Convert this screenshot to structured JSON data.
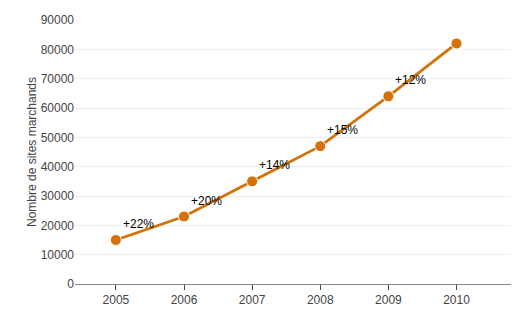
{
  "chart_data": {
    "type": "line",
    "x": [
      2005,
      2006,
      2007,
      2008,
      2009,
      2010
    ],
    "values": [
      15000,
      23000,
      35000,
      47000,
      64000,
      82000
    ],
    "color": "#D4720A",
    "marker": "circle",
    "ylabel": "Nombre de sites marchands",
    "annotations": [
      {
        "x": 2005,
        "y": 15000,
        "text": "+22%"
      },
      {
        "x": 2006,
        "y": 23000,
        "text": "+20%"
      },
      {
        "x": 2007,
        "y": 35000,
        "text": "+14%"
      },
      {
        "x": 2008,
        "y": 47000,
        "text": "+15%"
      },
      {
        "x": 2009,
        "y": 64000,
        "text": "+12%"
      }
    ],
    "ylim": [
      0,
      90000
    ],
    "yticks": [
      0,
      10000,
      20000,
      30000,
      40000,
      50000,
      60000,
      70000,
      80000,
      90000
    ],
    "xlim": [
      2004.4,
      2010.8
    ],
    "xticks": [
      2005,
      2006,
      2007,
      2008,
      2009,
      2010
    ],
    "grid": true
  }
}
